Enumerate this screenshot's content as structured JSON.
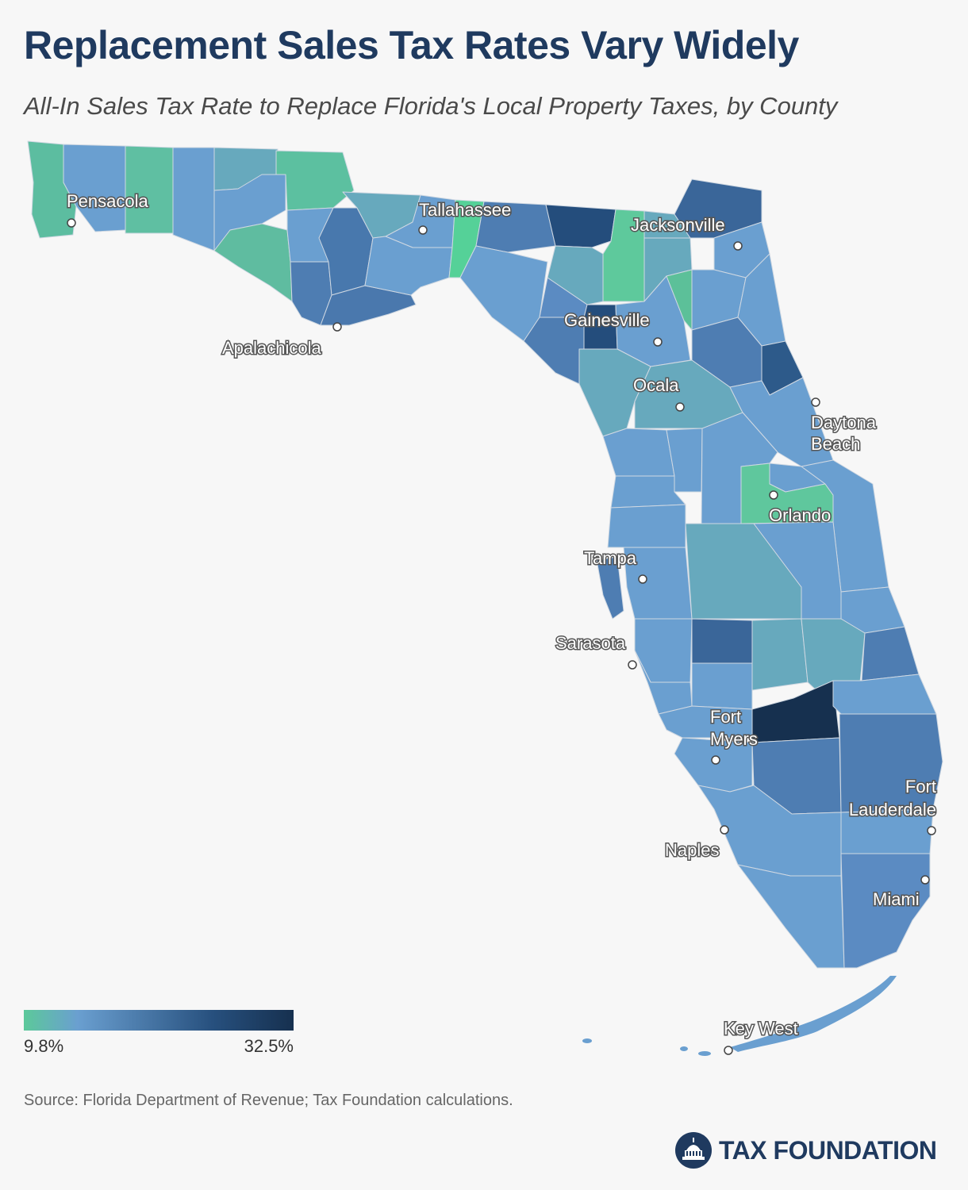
{
  "title": "Replacement Sales Tax Rates Vary Widely",
  "subtitle": "All-In Sales Tax Rate to Replace Florida's Local Property Taxes, by County",
  "legend": {
    "min_label": "9.8%",
    "max_label": "32.5%",
    "colors": [
      "#5cc99a",
      "#6a9fd0",
      "#27507e",
      "#16304f"
    ]
  },
  "cities": [
    {
      "name": "Pensacola"
    },
    {
      "name": "Tallahassee"
    },
    {
      "name": "Jacksonville"
    },
    {
      "name": "Apalachicola"
    },
    {
      "name": "Gainesville"
    },
    {
      "name": "Ocala"
    },
    {
      "name": "Daytona Beach"
    },
    {
      "name": "Orlando"
    },
    {
      "name": "Tampa"
    },
    {
      "name": "Sarasota"
    },
    {
      "name": "Fort Myers"
    },
    {
      "name": "Fort Lauderdale"
    },
    {
      "name": "Naples"
    },
    {
      "name": "Miami"
    },
    {
      "name": "Key West"
    }
  ],
  "source": "Source: Florida Department of Revenue; Tax Foundation calculations.",
  "logo": {
    "text": "TAX FOUNDATION"
  },
  "palette": {
    "low": "#5cc99a",
    "teal": "#67a9bd",
    "mid": "#6a9fd0",
    "steel": "#4e7db2",
    "dark": "#27507e",
    "darkest": "#16304f"
  }
}
